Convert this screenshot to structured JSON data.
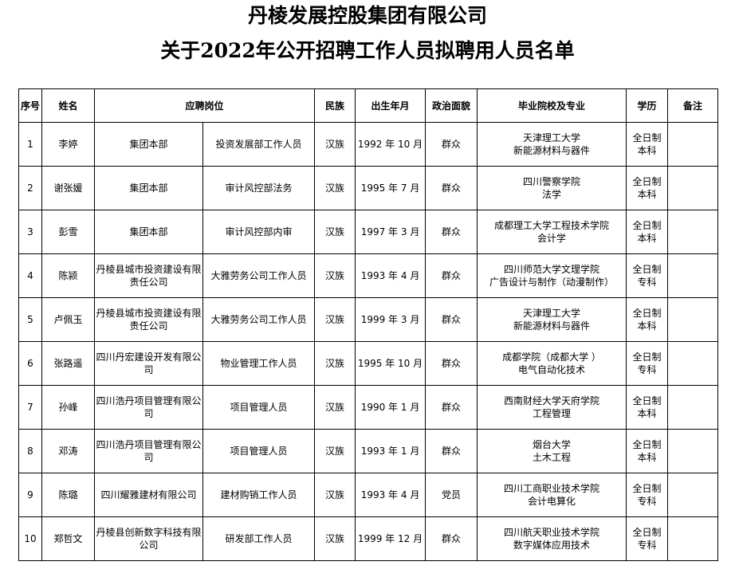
{
  "title_line1": "丹棱发展控股集团有限公司",
  "title_line2": "关于2022年公开招聘工作人员拟聘用人员名单",
  "headers": {
    "no": "序号",
    "name": "姓名",
    "position": "应聘岗位",
    "ethnicity": "民族",
    "birth": "出生年月",
    "political": "政治面貌",
    "school": "毕业院校及专业",
    "education": "学历",
    "remarks": "备注"
  },
  "rows": [
    {
      "no": "1",
      "name": "李婷",
      "unit": "集团本部",
      "post": "投资发展部工作人员",
      "ethnicity": "汉族",
      "birth": "1992 年 10 月",
      "political": "群众",
      "school": "天津理工大学",
      "major": "新能源材料与器件",
      "edu1": "全日制",
      "edu2": "本科",
      "remarks": ""
    },
    {
      "no": "2",
      "name": "谢张媛",
      "unit": "集团本部",
      "post": "审计风控部法务",
      "ethnicity": "汉族",
      "birth": "1995 年 7 月",
      "political": "群众",
      "school": "四川警察学院",
      "major": "法学",
      "edu1": "全日制",
      "edu2": "本科",
      "remarks": ""
    },
    {
      "no": "3",
      "name": "彭雪",
      "unit": "集团本部",
      "post": "审计风控部内审",
      "ethnicity": "汉族",
      "birth": "1997 年 3 月",
      "political": "群众",
      "school": "成都理工大学工程技术学院",
      "major": "会计学",
      "edu1": "全日制",
      "edu2": "本科",
      "remarks": ""
    },
    {
      "no": "4",
      "name": "陈颍",
      "unit": "丹棱县城市投资建设有限责任公司",
      "post": "大雅劳务公司工作人员",
      "ethnicity": "汉族",
      "birth": "1993 年 4 月",
      "political": "群众",
      "school": "四川师范大学文理学院",
      "major": "广告设计与制作（动漫制作）",
      "edu1": "全日制",
      "edu2": "专科",
      "remarks": ""
    },
    {
      "no": "5",
      "name": "卢佩玉",
      "unit": "丹棱县城市投资建设有限责任公司",
      "post": "大雅劳务公司工作人员",
      "ethnicity": "汉族",
      "birth": "1999 年 3 月",
      "political": "群众",
      "school": "天津理工大学",
      "major": "新能源材料与器件",
      "edu1": "全日制",
      "edu2": "本科",
      "remarks": ""
    },
    {
      "no": "6",
      "name": "张路遥",
      "unit": "四川丹宏建设开发有限公司",
      "post": "物业管理工作人员",
      "ethnicity": "汉族",
      "birth": "1995 年 10 月",
      "political": "群众",
      "school": "成都学院（成都大学 ）",
      "major": "电气自动化技术",
      "edu1": "全日制",
      "edu2": "专科",
      "remarks": ""
    },
    {
      "no": "7",
      "name": "孙峰",
      "unit": "四川浩丹项目管理有限公司",
      "post": "项目管理人员",
      "ethnicity": "汉族",
      "birth": "1990 年 1 月",
      "political": "群众",
      "school": "西南财经大学天府学院",
      "major": "工程管理",
      "edu1": "全日制",
      "edu2": "本科",
      "remarks": ""
    },
    {
      "no": "8",
      "name": "邓涛",
      "unit": "四川浩丹项目管理有限公司",
      "post": "项目管理人员",
      "ethnicity": "汉族",
      "birth": "1993 年 1 月",
      "political": "群众",
      "school": "烟台大学",
      "major": "土木工程",
      "edu1": "全日制",
      "edu2": "本科",
      "remarks": ""
    },
    {
      "no": "9",
      "name": "陈璐",
      "unit": "四川耀雅建材有限公司",
      "post": "建材购销工作人员",
      "ethnicity": "汉族",
      "birth": "1993 年 4 月",
      "political": "党员",
      "school": "四川工商职业技术学院",
      "major": "会计电算化",
      "edu1": "全日制",
      "edu2": "专科",
      "remarks": ""
    },
    {
      "no": "10",
      "name": "郑哲文",
      "unit": "丹棱县创新数字科技有限公司",
      "post": "研发部工作人员",
      "ethnicity": "汉族",
      "birth": "1999 年 12 月",
      "political": "群众",
      "school": "四川航天职业技术学院",
      "major": "数字媒体应用技术",
      "edu1": "全日制",
      "edu2": "专科",
      "remarks": ""
    }
  ]
}
